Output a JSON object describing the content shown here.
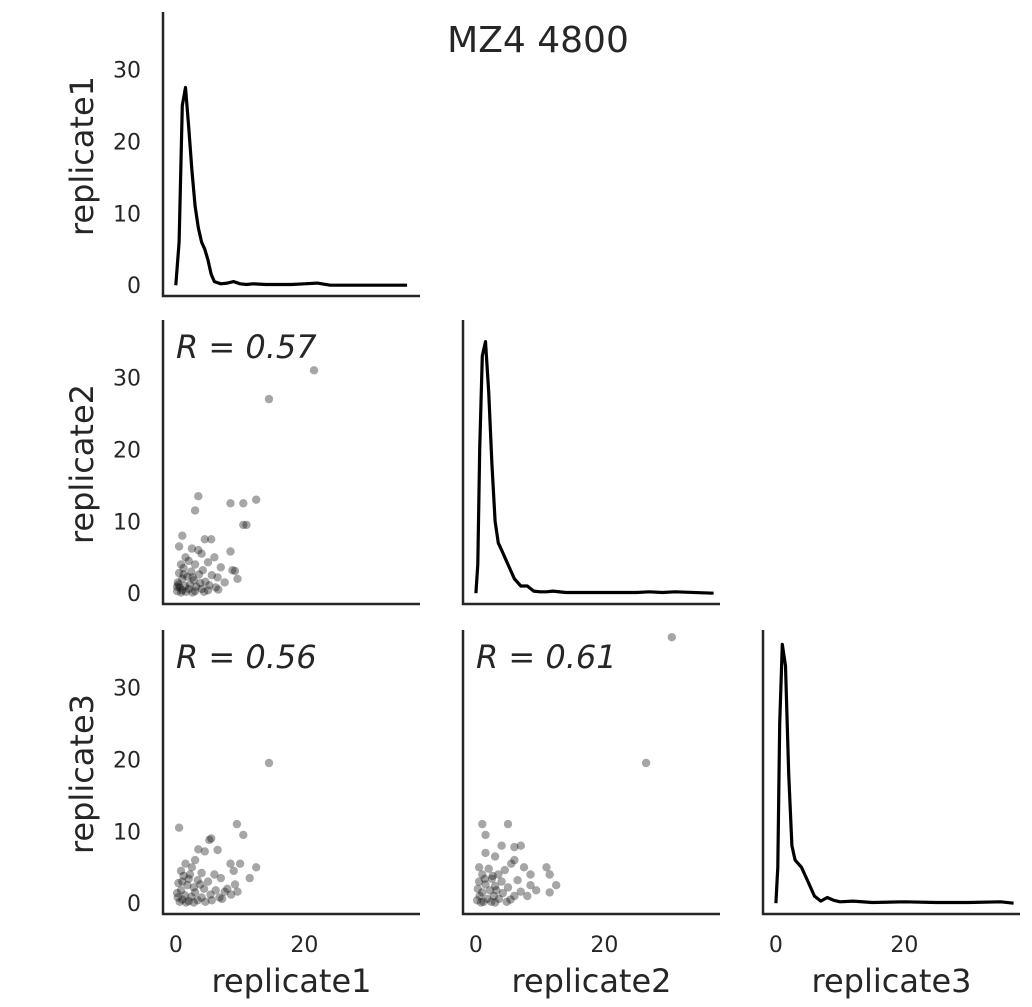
{
  "chart_data": {
    "type": "scatter",
    "title": "MZ4 4800",
    "variables": [
      "replicate1",
      "replicate2",
      "replicate3"
    ],
    "xticks": [
      0,
      20
    ],
    "yticks": [
      0,
      10,
      20,
      30
    ],
    "xlim": [
      -2,
      38
    ],
    "ylim": [
      -1.5,
      38
    ],
    "diagonal": [
      {
        "name": "replicate1",
        "x": [
          0,
          0.5,
          1,
          1.5,
          2,
          2.5,
          3,
          3.5,
          4,
          4.5,
          5,
          5.5,
          6,
          7,
          8,
          9,
          10,
          11,
          12,
          14,
          16,
          18,
          20,
          22,
          24,
          36
        ],
        "y": [
          0,
          6,
          25,
          27.5,
          22,
          16,
          11,
          8,
          6,
          5,
          3.5,
          1.5,
          0.5,
          0.2,
          0.3,
          0.5,
          0.2,
          0.1,
          0.2,
          0.1,
          0.1,
          0.1,
          0.2,
          0.3,
          0,
          0
        ]
      },
      {
        "name": "replicate2",
        "x": [
          0,
          0.3,
          0.6,
          1,
          1.5,
          2,
          2.5,
          3,
          3.5,
          4,
          4.5,
          5,
          6,
          7,
          8,
          9,
          10,
          11,
          12,
          14,
          20,
          25,
          27,
          29,
          31,
          37
        ],
        "y": [
          0,
          4,
          20,
          33,
          35,
          28,
          18,
          10,
          7,
          6,
          5,
          4,
          2,
          1,
          1,
          0.3,
          0.2,
          0.2,
          0.3,
          0.1,
          0.1,
          0.1,
          0.2,
          0.1,
          0.2,
          0
        ]
      },
      {
        "name": "replicate3",
        "x": [
          0,
          0.3,
          0.6,
          1,
          1.5,
          2,
          2.5,
          3,
          3.5,
          4,
          5,
          6,
          7,
          8,
          9,
          10,
          12,
          15,
          20,
          25,
          30,
          35,
          37
        ],
        "y": [
          0,
          5,
          25,
          36,
          33,
          18,
          8,
          6,
          5.5,
          5,
          3,
          1,
          0.3,
          0.8,
          0.4,
          0.2,
          0.3,
          0.1,
          0.2,
          0.1,
          0.1,
          0.2,
          0
        ]
      }
    ],
    "scatter_panels": [
      {
        "x": "replicate1",
        "y": "replicate2",
        "r": "R = 0.57",
        "points": [
          [
            21.5,
            31
          ],
          [
            14.5,
            27
          ],
          [
            3.5,
            13.5
          ],
          [
            12.5,
            13
          ],
          [
            8.5,
            12.5
          ],
          [
            10.5,
            12.5
          ],
          [
            3,
            11.5
          ],
          [
            10.5,
            9.5
          ],
          [
            11,
            9.5
          ],
          [
            1,
            8
          ],
          [
            4.5,
            7.5
          ],
          [
            5.5,
            7.5
          ],
          [
            8.5,
            5.8
          ],
          [
            0.5,
            6.5
          ],
          [
            2.5,
            6.2
          ],
          [
            3.5,
            6
          ],
          [
            4,
            5.5
          ],
          [
            1.5,
            5
          ],
          [
            6,
            5
          ],
          [
            2,
            4.5
          ],
          [
            5,
            4.3
          ],
          [
            0.8,
            4
          ],
          [
            3,
            4
          ],
          [
            7,
            3.6
          ],
          [
            1.2,
            3.5
          ],
          [
            4.2,
            3.2
          ],
          [
            2.4,
            3
          ],
          [
            8.8,
            3.2
          ],
          [
            9.2,
            3.1
          ],
          [
            0.5,
            2.8
          ],
          [
            3.6,
            2.6
          ],
          [
            5.6,
            2.5
          ],
          [
            1.8,
            2.3
          ],
          [
            6.5,
            2.2
          ],
          [
            9.6,
            2
          ],
          [
            1,
            2
          ],
          [
            2.8,
            1.8
          ],
          [
            4.6,
            1.6
          ],
          [
            0.3,
            1.5
          ],
          [
            7.6,
            1.5
          ],
          [
            2.2,
            1.2
          ],
          [
            5.2,
            1.1
          ],
          [
            1.4,
            1
          ],
          [
            3.2,
            0.9
          ],
          [
            0.6,
            0.8
          ],
          [
            6.2,
            0.8
          ],
          [
            2,
            0.6
          ],
          [
            4,
            0.6
          ],
          [
            1,
            0.4
          ],
          [
            0.2,
            0.3
          ],
          [
            3,
            0.3
          ],
          [
            5,
            0.4
          ],
          [
            1.6,
            0.2
          ],
          [
            2.6,
            0.1
          ],
          [
            0.8,
            0.1
          ],
          [
            4.4,
            0.2
          ],
          [
            6.6,
            0.5
          ],
          [
            0.4,
            1.2
          ],
          [
            1.2,
            2.6
          ],
          [
            2.6,
            2.2
          ],
          [
            3.8,
            1.4
          ],
          [
            0.2,
            0.9
          ]
        ]
      },
      {
        "x": "replicate1",
        "y": "replicate3",
        "r": "R = 0.56",
        "points": [
          [
            14.5,
            19.5
          ],
          [
            9.5,
            11
          ],
          [
            0.5,
            10.5
          ],
          [
            10.5,
            9.5
          ],
          [
            5.5,
            9
          ],
          [
            5.2,
            8.8
          ],
          [
            3.5,
            7.5
          ],
          [
            4.5,
            7.2
          ],
          [
            6.5,
            7.4
          ],
          [
            10,
            5.5
          ],
          [
            8.5,
            5.5
          ],
          [
            12.5,
            5
          ],
          [
            9,
            4.5
          ],
          [
            3,
            6
          ],
          [
            1.5,
            5.5
          ],
          [
            2.5,
            5
          ],
          [
            0.8,
            4.5
          ],
          [
            4,
            4.2
          ],
          [
            6,
            4
          ],
          [
            1.2,
            3.8
          ],
          [
            7,
            3.5
          ],
          [
            2,
            3.4
          ],
          [
            3.4,
            3.2
          ],
          [
            5,
            3
          ],
          [
            9.2,
            2.6
          ],
          [
            8,
            2
          ],
          [
            11.5,
            3.5
          ],
          [
            0.4,
            2.8
          ],
          [
            1.8,
            2.5
          ],
          [
            2.8,
            2.2
          ],
          [
            4.4,
            2
          ],
          [
            6.2,
            1.8
          ],
          [
            7.6,
            1.6
          ],
          [
            9.6,
            1.6
          ],
          [
            0.8,
            1.8
          ],
          [
            3,
            1.5
          ],
          [
            5.4,
            1.2
          ],
          [
            8.6,
            1.2
          ],
          [
            1.4,
            1.1
          ],
          [
            2.4,
            0.9
          ],
          [
            4,
            0.8
          ],
          [
            6.8,
            0.8
          ],
          [
            0.3,
            0.8
          ],
          [
            1,
            0.5
          ],
          [
            3.4,
            0.4
          ],
          [
            5.6,
            0.4
          ],
          [
            2,
            0.3
          ],
          [
            0.6,
            0.2
          ],
          [
            1.6,
            0.1
          ],
          [
            4.6,
            0.2
          ],
          [
            2.8,
            0.1
          ],
          [
            7.2,
            0.6
          ],
          [
            0.2,
            1.4
          ],
          [
            3.8,
            2.6
          ],
          [
            2.2,
            4
          ],
          [
            1,
            3
          ]
        ]
      },
      {
        "x": "replicate2",
        "y": "replicate3",
        "r": "R = 0.61",
        "points": [
          [
            30.5,
            37
          ],
          [
            26.5,
            19.5
          ],
          [
            5,
            11
          ],
          [
            1,
            11
          ],
          [
            1.5,
            9.5
          ],
          [
            4,
            8
          ],
          [
            7,
            8
          ],
          [
            6,
            7.8
          ],
          [
            1.5,
            7
          ],
          [
            3,
            6.5
          ],
          [
            6,
            6
          ],
          [
            5.5,
            5.5
          ],
          [
            11,
            5
          ],
          [
            7.5,
            5
          ],
          [
            8.5,
            4
          ],
          [
            11.5,
            4
          ],
          [
            0.5,
            5
          ],
          [
            2,
            4.8
          ],
          [
            4.5,
            4.6
          ],
          [
            1,
            4
          ],
          [
            3.5,
            4
          ],
          [
            2.5,
            3.4
          ],
          [
            6.5,
            3.2
          ],
          [
            0.5,
            3
          ],
          [
            4,
            3
          ],
          [
            12.5,
            2.5
          ],
          [
            11.5,
            1.5
          ],
          [
            8.5,
            2.5
          ],
          [
            1.5,
            2.6
          ],
          [
            3,
            2.4
          ],
          [
            5,
            2.2
          ],
          [
            0.3,
            2
          ],
          [
            2.2,
            1.8
          ],
          [
            7,
            1.6
          ],
          [
            1,
            1.5
          ],
          [
            4.2,
            1.4
          ],
          [
            2.8,
            1
          ],
          [
            6,
            1
          ],
          [
            0.6,
            1
          ],
          [
            1.8,
            0.6
          ],
          [
            3.6,
            0.6
          ],
          [
            5.4,
            0.5
          ],
          [
            0.2,
            0.4
          ],
          [
            1.2,
            0.2
          ],
          [
            2.4,
            0.2
          ],
          [
            4.8,
            0.2
          ],
          [
            3,
            0.1
          ],
          [
            0.8,
            0.1
          ],
          [
            8,
            1
          ],
          [
            9.4,
            1.8
          ],
          [
            2.6,
            3.8
          ],
          [
            1.4,
            3.4
          ],
          [
            3.2,
            1.8
          ]
        ]
      }
    ]
  }
}
